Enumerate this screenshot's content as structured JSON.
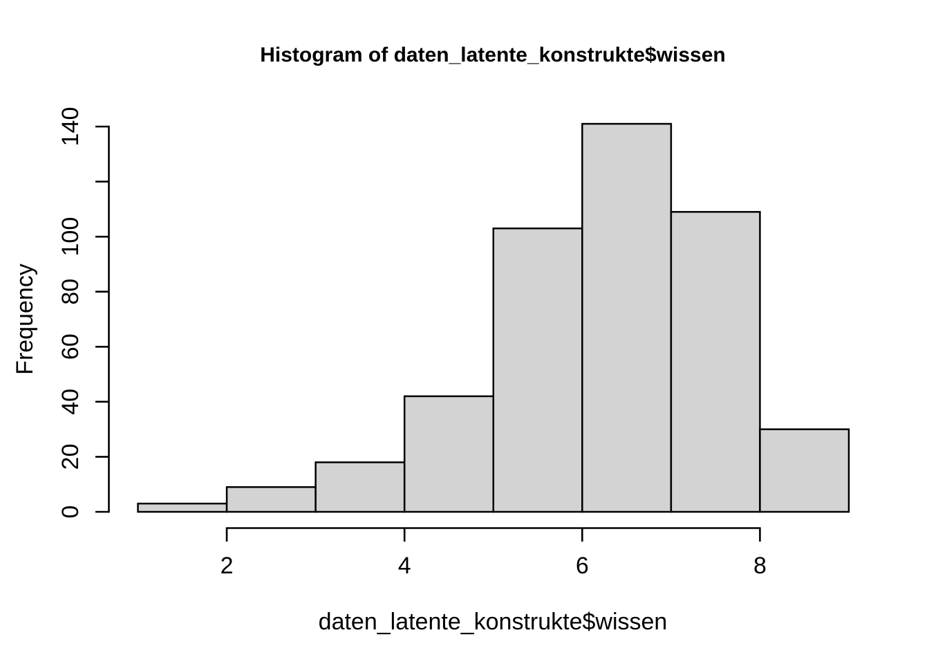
{
  "chart_data": {
    "type": "bar",
    "subtype": "histogram",
    "title": "Histogram of daten_latente_konstrukte$wissen",
    "xlabel": "daten_latente_konstrukte$wissen",
    "ylabel": "Frequency",
    "breaks": [
      1,
      2,
      3,
      4,
      5,
      6,
      7,
      8,
      9
    ],
    "counts": [
      3,
      9,
      18,
      42,
      103,
      141,
      109,
      30
    ],
    "categories": [
      "1-2",
      "2-3",
      "3-4",
      "4-5",
      "5-6",
      "6-7",
      "7-8",
      "8-9"
    ],
    "xlim": [
      1,
      9
    ],
    "ylim": [
      0,
      140
    ],
    "x_ticks": [
      2,
      4,
      6,
      8
    ],
    "x_tick_labels": [
      "2",
      "4",
      "6",
      "8"
    ],
    "y_ticks": [
      0,
      20,
      40,
      60,
      80,
      100,
      120,
      140
    ],
    "y_tick_labels": [
      "0",
      "20",
      "40",
      "60",
      "80",
      "100",
      "",
      "140"
    ],
    "grid": false,
    "legend_position": "none",
    "bar_fill": "#d3d3d3",
    "bar_stroke": "#000000",
    "axis_color": "#000000",
    "background": "#ffffff"
  }
}
